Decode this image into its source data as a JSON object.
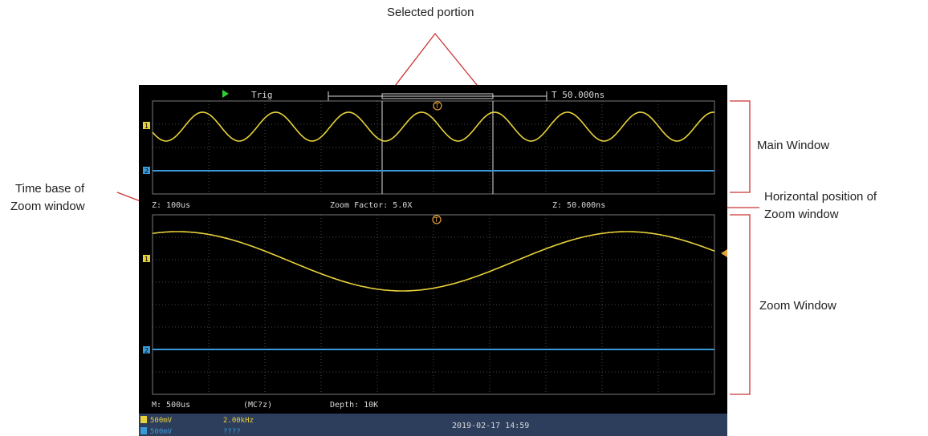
{
  "annotations": {
    "selected_portion": "Selected portion",
    "main_window": "Main Window",
    "time_base_line1": "Time base of",
    "time_base_line2": "Zoom window",
    "horiz_pos_line1": "Horizontal position of",
    "horiz_pos_line2": "Zoom window",
    "zoom_window": "Zoom Window"
  },
  "scope": {
    "run_state_icon": "play-icon",
    "trigger_status": "Trig",
    "trigger_position": "T 50.000ns",
    "zoom_timebase": "Z: 100us",
    "zoom_factor": "Zoom Factor: 5.0X",
    "zoom_position": "Z: 50.000ns",
    "main_timebase": "M: 500us",
    "frequency": "(MC?z)",
    "depth": "Depth: 10K",
    "ch1_scale": "500mV",
    "ch1_value": "2.00kHz",
    "ch2_scale": "500mV",
    "ch2_value": "????",
    "date_time": "2019-02-17 14:59",
    "ch1_marker": "1",
    "ch2_marker": "2",
    "trigger_marker": "T",
    "colors": {
      "ch1": "#e8d23a",
      "ch2": "#3a9ad8",
      "trigger": "#e6a23a",
      "annotation_line": "#cc3333",
      "grid": "#555555"
    }
  }
}
